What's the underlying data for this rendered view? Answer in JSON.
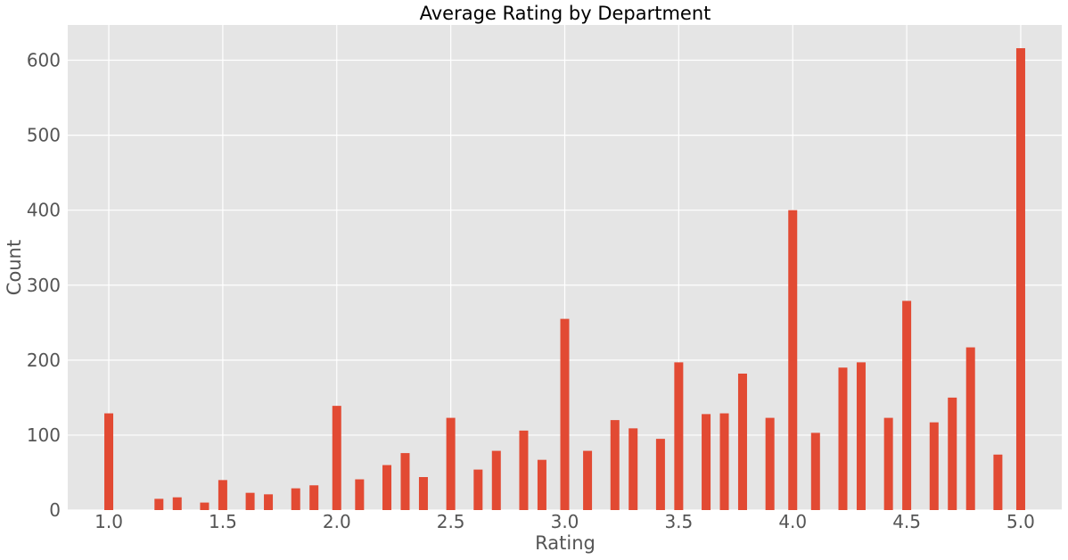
{
  "chart_data": {
    "type": "bar",
    "title": "Average Rating by Department",
    "xlabel": "Rating",
    "ylabel": "Count",
    "xlim": [
      0.82,
      5.18
    ],
    "ylim": [
      0,
      647
    ],
    "xticks": [
      "1.0",
      "1.5",
      "2.0",
      "2.5",
      "3.0",
      "3.5",
      "4.0",
      "4.5",
      "5.0"
    ],
    "yticks": [
      "0",
      "100",
      "200",
      "300",
      "400",
      "500",
      "600"
    ],
    "grid": true,
    "bar_color": "#E24A33",
    "background": "#E5E5E5",
    "x": [
      1.0,
      1.22,
      1.3,
      1.42,
      1.5,
      1.62,
      1.7,
      1.82,
      1.9,
      2.0,
      2.1,
      2.22,
      2.3,
      2.38,
      2.5,
      2.62,
      2.7,
      2.82,
      2.9,
      3.0,
      3.1,
      3.22,
      3.3,
      3.42,
      3.5,
      3.62,
      3.7,
      3.78,
      3.9,
      4.0,
      4.1,
      4.22,
      4.3,
      4.42,
      4.5,
      4.62,
      4.7,
      4.78,
      4.9,
      5.0
    ],
    "values": [
      129,
      15,
      17,
      10,
      40,
      23,
      21,
      29,
      33,
      139,
      41,
      60,
      76,
      44,
      123,
      54,
      79,
      106,
      67,
      255,
      79,
      120,
      109,
      95,
      197,
      128,
      129,
      182,
      123,
      400,
      103,
      190,
      197,
      123,
      279,
      117,
      150,
      217,
      74,
      616
    ]
  }
}
